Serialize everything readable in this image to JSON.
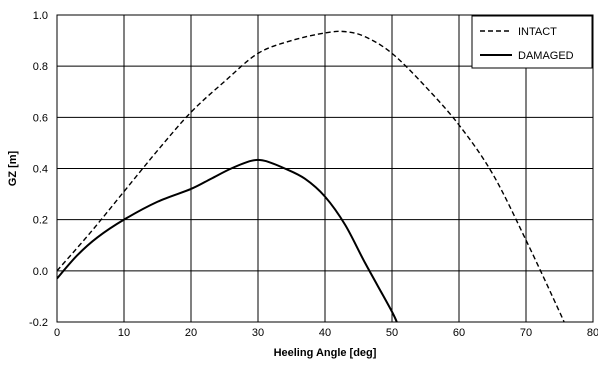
{
  "chart_data": {
    "type": "line",
    "xlabel": "Heeling Angle [deg]",
    "ylabel": "GZ [m]",
    "xlim": [
      0,
      80
    ],
    "ylim": [
      -0.2,
      1.0
    ],
    "xticks": [
      0,
      10,
      20,
      30,
      40,
      50,
      60,
      70,
      80
    ],
    "yticks": [
      -0.2,
      0.0,
      0.2,
      0.4,
      0.6,
      0.8,
      1.0
    ],
    "x_tick_labels": [
      "0",
      "10",
      "20",
      "30",
      "40",
      "50",
      "60",
      "70",
      "80"
    ],
    "y_tick_labels": [
      "-0.2",
      "0.0",
      "0.2",
      "0.4",
      "0.6",
      "0.8",
      "1.0"
    ],
    "grid": true,
    "legend_position": "top-right",
    "series": [
      {
        "name": "INTACT",
        "style": "dashed",
        "color": "#000000",
        "x": [
          0,
          5,
          10,
          15,
          20,
          25,
          30,
          35,
          40,
          43,
          46,
          50,
          55,
          60,
          65,
          70,
          75,
          76
        ],
        "y": [
          0.0,
          0.15,
          0.31,
          0.47,
          0.62,
          0.74,
          0.85,
          0.9,
          0.93,
          0.935,
          0.915,
          0.85,
          0.72,
          0.57,
          0.38,
          0.12,
          -0.16,
          -0.22
        ]
      },
      {
        "name": "DAMAGED",
        "style": "solid",
        "color": "#000000",
        "x": [
          0,
          3,
          6,
          10,
          15,
          20,
          23,
          26,
          29,
          31,
          34,
          37,
          40,
          43,
          46,
          50,
          51
        ],
        "y": [
          -0.03,
          0.06,
          0.13,
          0.2,
          0.27,
          0.32,
          0.36,
          0.4,
          0.43,
          0.43,
          0.4,
          0.36,
          0.29,
          0.18,
          0.03,
          -0.16,
          -0.22
        ]
      }
    ]
  }
}
